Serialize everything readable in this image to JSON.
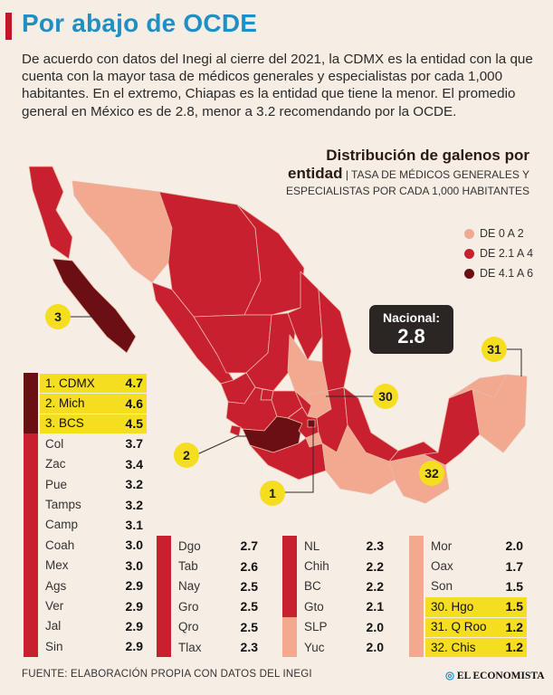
{
  "header": {
    "title": "Por abajo de OCDE",
    "intro": "De acuerdo con datos del Inegi al cierre del 2021, la CDMX es la entidad con la que cuenta con la mayor tasa de médicos generales y especialistas por cada 1,000 habitantes. En el extremo, Chiapas es la entidad que tiene la menor. El promedio general en México es de 2.8, menor a 3.2 recomendando por la OCDE."
  },
  "map": {
    "title_line1": "Distribución de galenos por",
    "title_line2": "entidad",
    "subtitle_line1": "TASA DE MÉDICOS GENERALES Y",
    "subtitle_line2": "ESPECIALISTAS POR CADA 1,000 HABITANTES",
    "legend": [
      {
        "label": "DE 0 A 2",
        "color": "#f2a98f"
      },
      {
        "label": "DE 2.1 A 4",
        "color": "#c8202f"
      },
      {
        "label": "DE 4.1 A 6",
        "color": "#6b0f12"
      }
    ],
    "nacional_label": "Nacional:",
    "nacional_value": "2.8",
    "callouts": [
      "1",
      "2",
      "3",
      "30",
      "31",
      "32"
    ]
  },
  "colors": {
    "low": "#f2a98f",
    "mid": "#c8202f",
    "high": "#6b0f12",
    "highlight": "#f5dd1f",
    "title_blue": "#1f8fc6"
  },
  "ranking": {
    "col1": [
      {
        "name": "1. CDMX",
        "value": "4.7",
        "level": "high",
        "hl": true
      },
      {
        "name": "2. Mich",
        "value": "4.6",
        "level": "high",
        "hl": true
      },
      {
        "name": "3. BCS",
        "value": "4.5",
        "level": "high",
        "hl": true
      },
      {
        "name": "Col",
        "value": "3.7",
        "level": "mid",
        "hl": false
      },
      {
        "name": "Zac",
        "value": "3.4",
        "level": "mid",
        "hl": false
      },
      {
        "name": "Pue",
        "value": "3.2",
        "level": "mid",
        "hl": false
      },
      {
        "name": "Tamps",
        "value": "3.2",
        "level": "mid",
        "hl": false
      },
      {
        "name": "Camp",
        "value": "3.1",
        "level": "mid",
        "hl": false
      },
      {
        "name": "Coah",
        "value": "3.0",
        "level": "mid",
        "hl": false
      },
      {
        "name": "Mex",
        "value": "3.0",
        "level": "mid",
        "hl": false
      },
      {
        "name": "Ags",
        "value": "2.9",
        "level": "mid",
        "hl": false
      },
      {
        "name": "Ver",
        "value": "2.9",
        "level": "mid",
        "hl": false
      },
      {
        "name": "Jal",
        "value": "2.9",
        "level": "mid",
        "hl": false
      },
      {
        "name": "Sin",
        "value": "2.9",
        "level": "mid",
        "hl": false
      }
    ],
    "col2": [
      {
        "name": "Dgo",
        "value": "2.7",
        "level": "mid",
        "hl": false
      },
      {
        "name": "Tab",
        "value": "2.6",
        "level": "mid",
        "hl": false
      },
      {
        "name": "Nay",
        "value": "2.5",
        "level": "mid",
        "hl": false
      },
      {
        "name": "Gro",
        "value": "2.5",
        "level": "mid",
        "hl": false
      },
      {
        "name": "Qro",
        "value": "2.5",
        "level": "mid",
        "hl": false
      },
      {
        "name": "Tlax",
        "value": "2.3",
        "level": "mid",
        "hl": false
      }
    ],
    "col3": [
      {
        "name": "NL",
        "value": "2.3",
        "level": "mid",
        "hl": false
      },
      {
        "name": "Chih",
        "value": "2.2",
        "level": "mid",
        "hl": false
      },
      {
        "name": "BC",
        "value": "2.2",
        "level": "mid",
        "hl": false
      },
      {
        "name": "Gto",
        "value": "2.1",
        "level": "mid",
        "hl": false
      },
      {
        "name": "SLP",
        "value": "2.0",
        "level": "low",
        "hl": false
      },
      {
        "name": "Yuc",
        "value": "2.0",
        "level": "low",
        "hl": false
      }
    ],
    "col4": [
      {
        "name": "Mor",
        "value": "2.0",
        "level": "low",
        "hl": false
      },
      {
        "name": "Oax",
        "value": "1.7",
        "level": "low",
        "hl": false
      },
      {
        "name": "Son",
        "value": "1.5",
        "level": "low",
        "hl": false
      },
      {
        "name": "30. Hgo",
        "value": "1.5",
        "level": "low",
        "hl": true
      },
      {
        "name": "31. Q Roo",
        "value": "1.2",
        "level": "low",
        "hl": true
      },
      {
        "name": "32. Chis",
        "value": "1.2",
        "level": "low",
        "hl": true
      }
    ]
  },
  "footer": {
    "source": "FUENTE: ELABORACIÓN PROPIA CON DATOS DEL INEGI",
    "brand": "EL ECONOMISTA"
  }
}
